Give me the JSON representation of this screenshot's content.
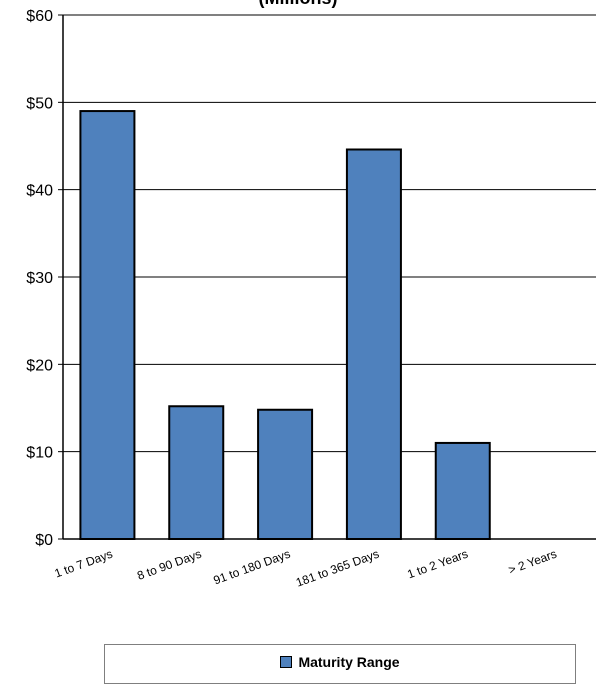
{
  "chart_data": {
    "type": "bar",
    "title": "(Millions)",
    "categories": [
      "1 to 7 Days",
      "8 to 90 Days",
      "91 to 180 Days",
      "181 to 365 Days",
      "1 to 2 Years",
      "> 2 Years"
    ],
    "series": [
      {
        "name": "Maturity Range",
        "values": [
          49.0,
          15.2,
          14.8,
          44.6,
          11.0,
          0
        ]
      }
    ],
    "y_ticks": [
      "$0",
      "$10",
      "$20",
      "$30",
      "$40",
      "$50",
      "$60"
    ],
    "ylim": [
      0,
      60
    ],
    "grid": true,
    "legend_position": "bottom",
    "colors": {
      "bar": "#4f81bd",
      "bar_border": "#000000",
      "grid": "#000000"
    }
  }
}
